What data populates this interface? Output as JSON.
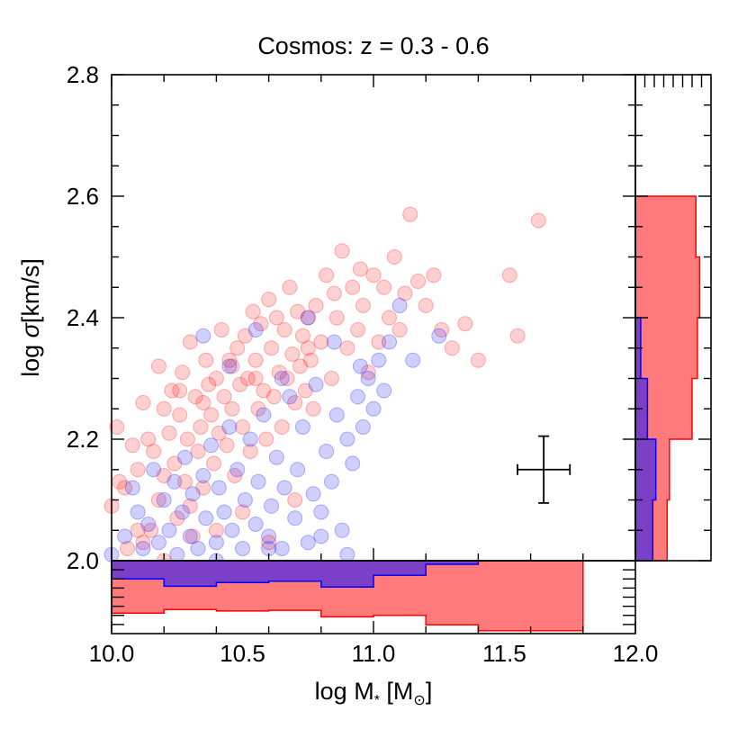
{
  "chart_data": {
    "type": "scatter",
    "title": "Cosmos: z = 0.3 - 0.6",
    "xlabel": "log M",
    "xlabel_sub": "*",
    "xlabel_unit_open": " [M",
    "xlabel_unit_sub": "⊙",
    "xlabel_unit_close": "]",
    "ylabel_prefix": "log ",
    "ylabel_sym": "σ",
    "ylabel_suffix": "[km/s]",
    "xlim": [
      10.0,
      12.0
    ],
    "ylim": [
      2.0,
      2.8
    ],
    "xticks": [
      "10.0",
      "10.5",
      "11.0",
      "11.5",
      "12.0"
    ],
    "yticks": [
      "2.0",
      "2.2",
      "2.4",
      "2.6",
      "2.8"
    ],
    "colors": {
      "red": "#ff7b7b",
      "blue": "#7f7fff",
      "overlap": "#7b3fc8"
    },
    "error_bar": {
      "x": 11.65,
      "y": 2.15,
      "xerr": 0.1,
      "yerr": 0.055
    },
    "series": [
      {
        "name": "red",
        "points": [
          [
            10.0,
            2.09
          ],
          [
            10.02,
            2.22
          ],
          [
            10.03,
            2.13
          ],
          [
            10.05,
            2.12
          ],
          [
            10.06,
            2.02
          ],
          [
            10.08,
            2.19
          ],
          [
            10.1,
            2.15
          ],
          [
            10.12,
            2.26
          ],
          [
            10.12,
            2.03
          ],
          [
            10.14,
            2.2
          ],
          [
            10.15,
            2.05
          ],
          [
            10.16,
            2.18
          ],
          [
            10.18,
            2.32
          ],
          [
            10.18,
            2.1
          ],
          [
            10.2,
            2.25
          ],
          [
            10.2,
            2.14
          ],
          [
            10.22,
            2.21
          ],
          [
            10.23,
            2.28
          ],
          [
            10.24,
            2.16
          ],
          [
            10.25,
            2.07
          ],
          [
            10.26,
            2.24
          ],
          [
            10.27,
            2.31
          ],
          [
            10.28,
            2.13
          ],
          [
            10.29,
            2.2
          ],
          [
            10.3,
            2.36
          ],
          [
            10.31,
            2.04
          ],
          [
            10.32,
            2.27
          ],
          [
            10.33,
            2.18
          ],
          [
            10.34,
            2.22
          ],
          [
            10.35,
            2.12
          ],
          [
            10.36,
            2.33
          ],
          [
            10.37,
            2.29
          ],
          [
            10.38,
            2.24
          ],
          [
            10.39,
            2.16
          ],
          [
            10.4,
            2.3
          ],
          [
            10.41,
            2.21
          ],
          [
            10.42,
            2.38
          ],
          [
            10.43,
            2.27
          ],
          [
            10.44,
            2.19
          ],
          [
            10.45,
            2.33
          ],
          [
            10.46,
            2.25
          ],
          [
            10.47,
            2.14
          ],
          [
            10.48,
            2.35
          ],
          [
            10.49,
            2.29
          ],
          [
            10.5,
            2.22
          ],
          [
            10.51,
            2.37
          ],
          [
            10.52,
            2.3
          ],
          [
            10.53,
            2.18
          ],
          [
            10.54,
            2.41
          ],
          [
            10.55,
            2.33
          ],
          [
            10.56,
            2.25
          ],
          [
            10.57,
            2.39
          ],
          [
            10.58,
            2.28
          ],
          [
            10.59,
            2.2
          ],
          [
            10.6,
            2.43
          ],
          [
            10.61,
            2.35
          ],
          [
            10.62,
            2.27
          ],
          [
            10.63,
            2.4
          ],
          [
            10.64,
            2.31
          ],
          [
            10.65,
            2.22
          ],
          [
            10.66,
            2.38
          ],
          [
            10.67,
            2.3
          ],
          [
            10.68,
            2.45
          ],
          [
            10.69,
            2.34
          ],
          [
            10.7,
            2.26
          ],
          [
            10.71,
            2.41
          ],
          [
            10.72,
            2.32
          ],
          [
            10.73,
            2.37
          ],
          [
            10.74,
            2.28
          ],
          [
            10.75,
            2.4
          ],
          [
            10.76,
            2.33
          ],
          [
            10.77,
            2.25
          ],
          [
            10.78,
            2.42
          ],
          [
            10.8,
            2.36
          ],
          [
            10.82,
            2.47
          ],
          [
            10.84,
            2.3
          ],
          [
            10.86,
            2.4
          ],
          [
            10.88,
            2.51
          ],
          [
            10.9,
            2.35
          ],
          [
            10.92,
            2.45
          ],
          [
            10.94,
            2.38
          ],
          [
            10.96,
            2.42
          ],
          [
            10.98,
            2.31
          ],
          [
            11.0,
            2.47
          ],
          [
            11.02,
            2.36
          ],
          [
            11.04,
            2.45
          ],
          [
            11.06,
            2.4
          ],
          [
            11.08,
            2.5
          ],
          [
            11.1,
            2.38
          ],
          [
            11.12,
            2.44
          ],
          [
            11.14,
            2.57
          ],
          [
            11.17,
            2.46
          ],
          [
            11.2,
            2.42
          ],
          [
            11.23,
            2.47
          ],
          [
            11.26,
            2.38
          ],
          [
            11.3,
            2.35
          ],
          [
            11.35,
            2.39
          ],
          [
            11.4,
            2.33
          ],
          [
            11.52,
            2.47
          ],
          [
            11.55,
            2.37
          ],
          [
            11.63,
            2.56
          ],
          [
            10.1,
            2.05
          ],
          [
            10.2,
            2.0
          ],
          [
            10.3,
            2.09
          ],
          [
            10.4,
            2.05
          ],
          [
            10.5,
            2.08
          ],
          [
            10.6,
            2.03
          ],
          [
            10.7,
            2.1
          ],
          [
            10.26,
            2.28
          ],
          [
            10.35,
            2.26
          ],
          [
            10.46,
            2.32
          ],
          [
            10.55,
            2.3
          ],
          [
            10.75,
            2.35
          ],
          [
            10.85,
            2.44
          ],
          [
            10.95,
            2.48
          ]
        ]
      },
      {
        "name": "blue",
        "points": [
          [
            10.0,
            2.01
          ],
          [
            10.05,
            2.04
          ],
          [
            10.08,
            2.12
          ],
          [
            10.1,
            2.08
          ],
          [
            10.12,
            2.02
          ],
          [
            10.14,
            2.06
          ],
          [
            10.16,
            2.15
          ],
          [
            10.18,
            2.03
          ],
          [
            10.2,
            2.1
          ],
          [
            10.22,
            2.05
          ],
          [
            10.24,
            2.13
          ],
          [
            10.25,
            2.01
          ],
          [
            10.27,
            2.08
          ],
          [
            10.28,
            2.17
          ],
          [
            10.3,
            2.04
          ],
          [
            10.31,
            2.11
          ],
          [
            10.33,
            2.02
          ],
          [
            10.35,
            2.14
          ],
          [
            10.36,
            2.07
          ],
          [
            10.38,
            2.19
          ],
          [
            10.4,
            2.03
          ],
          [
            10.41,
            2.12
          ],
          [
            10.43,
            2.08
          ],
          [
            10.45,
            2.22
          ],
          [
            10.46,
            2.05
          ],
          [
            10.48,
            2.15
          ],
          [
            10.5,
            2.02
          ],
          [
            10.51,
            2.1
          ],
          [
            10.53,
            2.2
          ],
          [
            10.55,
            2.06
          ],
          [
            10.56,
            2.13
          ],
          [
            10.58,
            2.24
          ],
          [
            10.6,
            2.04
          ],
          [
            10.61,
            2.09
          ],
          [
            10.63,
            2.17
          ],
          [
            10.65,
            2.02
          ],
          [
            10.66,
            2.12
          ],
          [
            10.68,
            2.27
          ],
          [
            10.7,
            2.07
          ],
          [
            10.71,
            2.15
          ],
          [
            10.73,
            2.22
          ],
          [
            10.75,
            2.03
          ],
          [
            10.77,
            2.11
          ],
          [
            10.78,
            2.29
          ],
          [
            10.8,
            2.08
          ],
          [
            10.82,
            2.18
          ],
          [
            10.84,
            2.13
          ],
          [
            10.86,
            2.24
          ],
          [
            10.88,
            2.05
          ],
          [
            10.9,
            2.2
          ],
          [
            10.92,
            2.16
          ],
          [
            10.94,
            2.27
          ],
          [
            10.96,
            2.22
          ],
          [
            10.98,
            2.3
          ],
          [
            11.0,
            2.25
          ],
          [
            11.02,
            2.33
          ],
          [
            11.04,
            2.28
          ],
          [
            11.06,
            2.36
          ],
          [
            11.1,
            2.42
          ],
          [
            11.15,
            2.33
          ],
          [
            11.25,
            2.37
          ],
          [
            10.35,
            2.37
          ],
          [
            10.45,
            2.32
          ],
          [
            10.55,
            2.38
          ],
          [
            10.65,
            2.3
          ],
          [
            10.75,
            2.4
          ],
          [
            10.85,
            2.36
          ],
          [
            10.95,
            2.32
          ],
          [
            10.4,
            2.0
          ],
          [
            10.6,
            2.02
          ],
          [
            10.8,
            2.04
          ],
          [
            10.9,
            2.01
          ]
        ]
      }
    ],
    "bottom_hist": {
      "bin_edges": [
        10.0,
        10.2,
        10.4,
        10.6,
        10.8,
        11.0,
        11.2,
        11.4,
        11.8
      ],
      "red": [
        0.72,
        0.67,
        0.69,
        0.68,
        0.77,
        0.75,
        0.88,
        0.96
      ],
      "blue": [
        0.25,
        0.35,
        0.3,
        0.28,
        0.36,
        0.2,
        0.05,
        0.0
      ]
    },
    "right_hist": {
      "bin_edges": [
        2.0,
        2.1,
        2.2,
        2.3,
        2.4,
        2.5,
        2.6
      ],
      "red": [
        0.42,
        0.45,
        0.75,
        0.82,
        0.85,
        0.8
      ],
      "blue": [
        0.23,
        0.27,
        0.16,
        0.07,
        0.0,
        0.0
      ]
    }
  }
}
